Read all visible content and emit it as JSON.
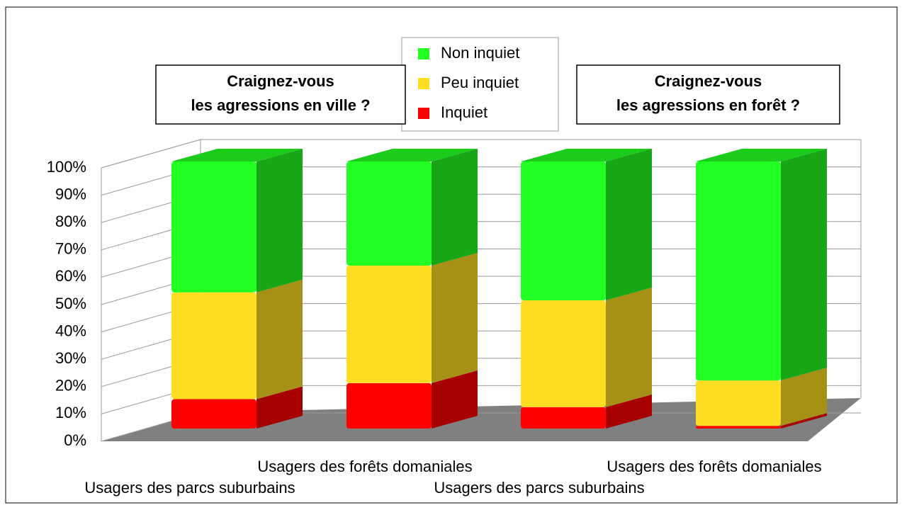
{
  "chart_data": {
    "type": "bar3d_stacked",
    "categories": [
      "Usagers des parcs suburbains",
      "Usagers des forêts domaniales",
      "Usagers des parcs suburbains",
      "Usagers des forêts domaniales"
    ],
    "series": [
      {
        "name": "Inquiet",
        "color": "#ff0000",
        "values": [
          11,
          17,
          8,
          1
        ]
      },
      {
        "name": "Peu inquiet",
        "color": "#ffdd22",
        "values": [
          40,
          44,
          40,
          17
        ]
      },
      {
        "name": "Non inquiet",
        "color": "#22ff22",
        "values": [
          49,
          39,
          52,
          82
        ]
      }
    ],
    "ylim": [
      0,
      100
    ],
    "yticks": [
      {
        "value": 0,
        "label": "0%"
      },
      {
        "value": 10,
        "label": "10%"
      },
      {
        "value": 20,
        "label": "20%"
      },
      {
        "value": 30,
        "label": "30%"
      },
      {
        "value": 40,
        "label": "40%"
      },
      {
        "value": 50,
        "label": "50%"
      },
      {
        "value": 60,
        "label": "60%"
      },
      {
        "value": 70,
        "label": "70%"
      },
      {
        "value": 80,
        "label": "80%"
      },
      {
        "value": 90,
        "label": "90%"
      },
      {
        "value": 100,
        "label": "100%"
      }
    ],
    "grid": true,
    "annotations": [
      {
        "lines": [
          "Craignez-vous",
          "les agressions en ville ?"
        ]
      },
      {
        "lines": [
          "Craignez-vous",
          "les agressions en forêt ?"
        ]
      }
    ]
  }
}
